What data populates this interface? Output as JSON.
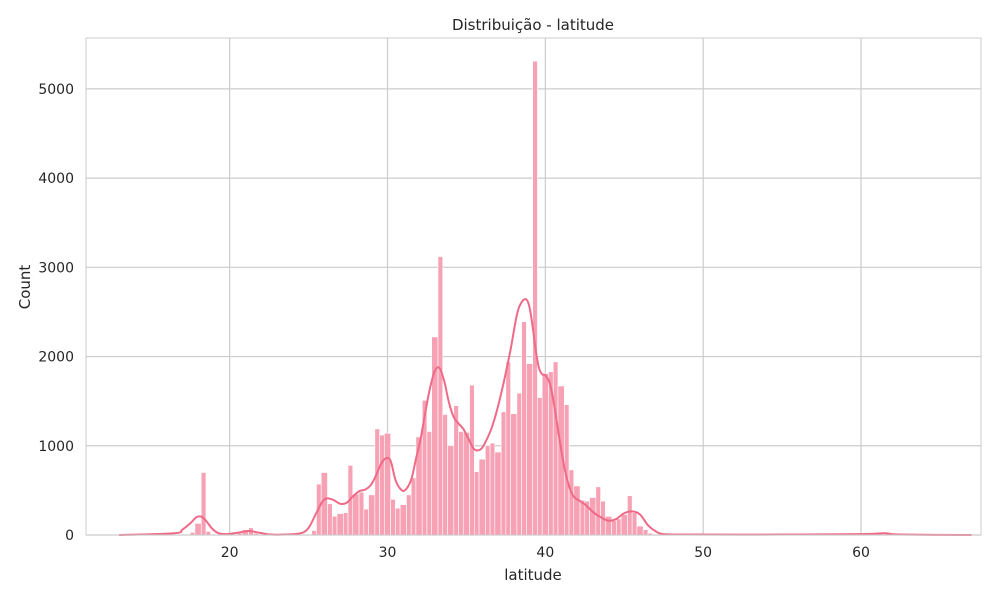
{
  "chart_data": {
    "type": "histogram",
    "title": "Distribuição - latitude",
    "xlabel": "latitude",
    "ylabel": "Count",
    "xlim": [
      10.9,
      67.6
    ],
    "ylim": [
      0,
      5570
    ],
    "xticks": [
      20,
      30,
      40,
      50,
      60
    ],
    "yticks": [
      0,
      1000,
      2000,
      3000,
      4000,
      5000
    ],
    "grid": true,
    "bar_color": "#f7a1b5",
    "bar_edge_color": "#ffffff",
    "kde_color": "#ef6a87",
    "grid_color": "#cccccc",
    "frame_color": "#cccccc",
    "bins": [
      [
        13.3,
        13.6,
        0
      ],
      [
        17.5,
        17.8,
        30
      ],
      [
        17.8,
        18.2,
        130
      ],
      [
        18.2,
        18.5,
        700
      ],
      [
        18.5,
        18.8,
        40
      ],
      [
        18.8,
        19.2,
        10
      ],
      [
        20.2,
        20.5,
        10
      ],
      [
        20.5,
        20.8,
        20
      ],
      [
        20.8,
        21.2,
        60
      ],
      [
        21.2,
        21.5,
        80
      ],
      [
        21.5,
        21.8,
        20
      ],
      [
        22.5,
        22.8,
        5
      ],
      [
        25.2,
        25.5,
        50
      ],
      [
        25.5,
        25.8,
        570
      ],
      [
        25.8,
        26.2,
        700
      ],
      [
        26.2,
        26.5,
        350
      ],
      [
        26.5,
        26.8,
        210
      ],
      [
        26.8,
        27.2,
        240
      ],
      [
        27.2,
        27.5,
        250
      ],
      [
        27.5,
        27.8,
        780
      ],
      [
        27.8,
        28.2,
        460
      ],
      [
        28.2,
        28.5,
        480
      ],
      [
        28.5,
        28.8,
        290
      ],
      [
        28.8,
        29.2,
        450
      ],
      [
        29.2,
        29.5,
        1190
      ],
      [
        29.5,
        29.8,
        1120
      ],
      [
        29.8,
        30.2,
        1140
      ],
      [
        30.2,
        30.5,
        400
      ],
      [
        30.5,
        30.8,
        300
      ],
      [
        30.8,
        31.2,
        340
      ],
      [
        31.2,
        31.5,
        450
      ],
      [
        31.5,
        31.8,
        640
      ],
      [
        31.8,
        32.2,
        1100
      ],
      [
        32.2,
        32.5,
        1510
      ],
      [
        32.5,
        32.8,
        1160
      ],
      [
        32.8,
        33.2,
        2220
      ],
      [
        33.2,
        33.5,
        3120
      ],
      [
        33.5,
        33.8,
        1350
      ],
      [
        33.8,
        34.2,
        1000
      ],
      [
        34.2,
        34.5,
        1450
      ],
      [
        34.5,
        34.8,
        1160
      ],
      [
        34.8,
        35.2,
        1150
      ],
      [
        35.2,
        35.5,
        1680
      ],
      [
        35.5,
        35.8,
        710
      ],
      [
        35.8,
        36.2,
        850
      ],
      [
        36.2,
        36.5,
        1000
      ],
      [
        36.5,
        36.8,
        1030
      ],
      [
        36.8,
        37.2,
        930
      ],
      [
        37.2,
        37.5,
        1380
      ],
      [
        37.5,
        37.8,
        1940
      ],
      [
        37.8,
        38.2,
        1360
      ],
      [
        38.2,
        38.5,
        1590
      ],
      [
        38.5,
        38.8,
        2390
      ],
      [
        38.8,
        39.2,
        1920
      ],
      [
        39.2,
        39.5,
        5310
      ],
      [
        39.5,
        39.8,
        1540
      ],
      [
        39.8,
        40.2,
        1810
      ],
      [
        40.2,
        40.5,
        1830
      ],
      [
        40.5,
        40.8,
        1940
      ],
      [
        40.8,
        41.2,
        1670
      ],
      [
        41.2,
        41.5,
        1460
      ],
      [
        41.5,
        41.8,
        730
      ],
      [
        41.8,
        42.2,
        550
      ],
      [
        42.2,
        42.5,
        390
      ],
      [
        42.5,
        42.8,
        380
      ],
      [
        42.8,
        43.2,
        420
      ],
      [
        43.2,
        43.5,
        540
      ],
      [
        43.5,
        43.8,
        380
      ],
      [
        43.8,
        44.2,
        210
      ],
      [
        44.2,
        44.5,
        160
      ],
      [
        44.5,
        44.8,
        180
      ],
      [
        44.8,
        45.2,
        230
      ],
      [
        45.2,
        45.5,
        440
      ],
      [
        45.5,
        45.8,
        250
      ],
      [
        45.8,
        46.2,
        100
      ],
      [
        46.2,
        46.5,
        60
      ],
      [
        46.5,
        46.8,
        20
      ],
      [
        48.2,
        48.5,
        5
      ],
      [
        61.2,
        61.5,
        10
      ],
      [
        61.5,
        61.8,
        15
      ]
    ],
    "kde": {
      "x": [
        13,
        16.5,
        17,
        17.5,
        17.9,
        18.2,
        18.5,
        18.9,
        19.3,
        19.8,
        20.5,
        21.2,
        21.9,
        22.6,
        23.5,
        24.5,
        25,
        25.5,
        25.9,
        26.2,
        26.6,
        27,
        27.4,
        27.8,
        28.2,
        28.6,
        28.9,
        29.2,
        29.6,
        29.9,
        30.2,
        30.5,
        30.8,
        31.1,
        31.5,
        31.8,
        32.1,
        32.4,
        32.7,
        33,
        33.3,
        33.6,
        33.9,
        34.2,
        34.5,
        34.8,
        35.1,
        35.5,
        35.9,
        36.2,
        36.6,
        37,
        37.4,
        37.8,
        38.2,
        38.5,
        38.8,
        39,
        39.2,
        39.4,
        39.6,
        39.8,
        40,
        40.3,
        40.6,
        40.9,
        41.2,
        41.5,
        41.8,
        42.2,
        42.6,
        43,
        43.5,
        44,
        44.5,
        45,
        45.5,
        46,
        46.5,
        47,
        47.5,
        49,
        55,
        60,
        61.5,
        62.5,
        67
      ],
      "y": [
        0,
        20,
        60,
        130,
        200,
        205,
        160,
        70,
        20,
        10,
        25,
        45,
        25,
        5,
        5,
        20,
        80,
        250,
        380,
        410,
        390,
        350,
        360,
        430,
        490,
        510,
        550,
        640,
        800,
        860,
        830,
        620,
        520,
        500,
        620,
        850,
        1080,
        1380,
        1650,
        1840,
        1870,
        1720,
        1480,
        1320,
        1250,
        1190,
        1090,
        960,
        960,
        1040,
        1200,
        1440,
        1740,
        2080,
        2470,
        2610,
        2640,
        2550,
        2330,
        2060,
        1870,
        1800,
        1790,
        1690,
        1410,
        1070,
        760,
        550,
        430,
        380,
        330,
        260,
        200,
        160,
        180,
        245,
        265,
        230,
        110,
        40,
        10,
        5,
        5,
        10,
        20,
        5,
        0
      ]
    }
  }
}
